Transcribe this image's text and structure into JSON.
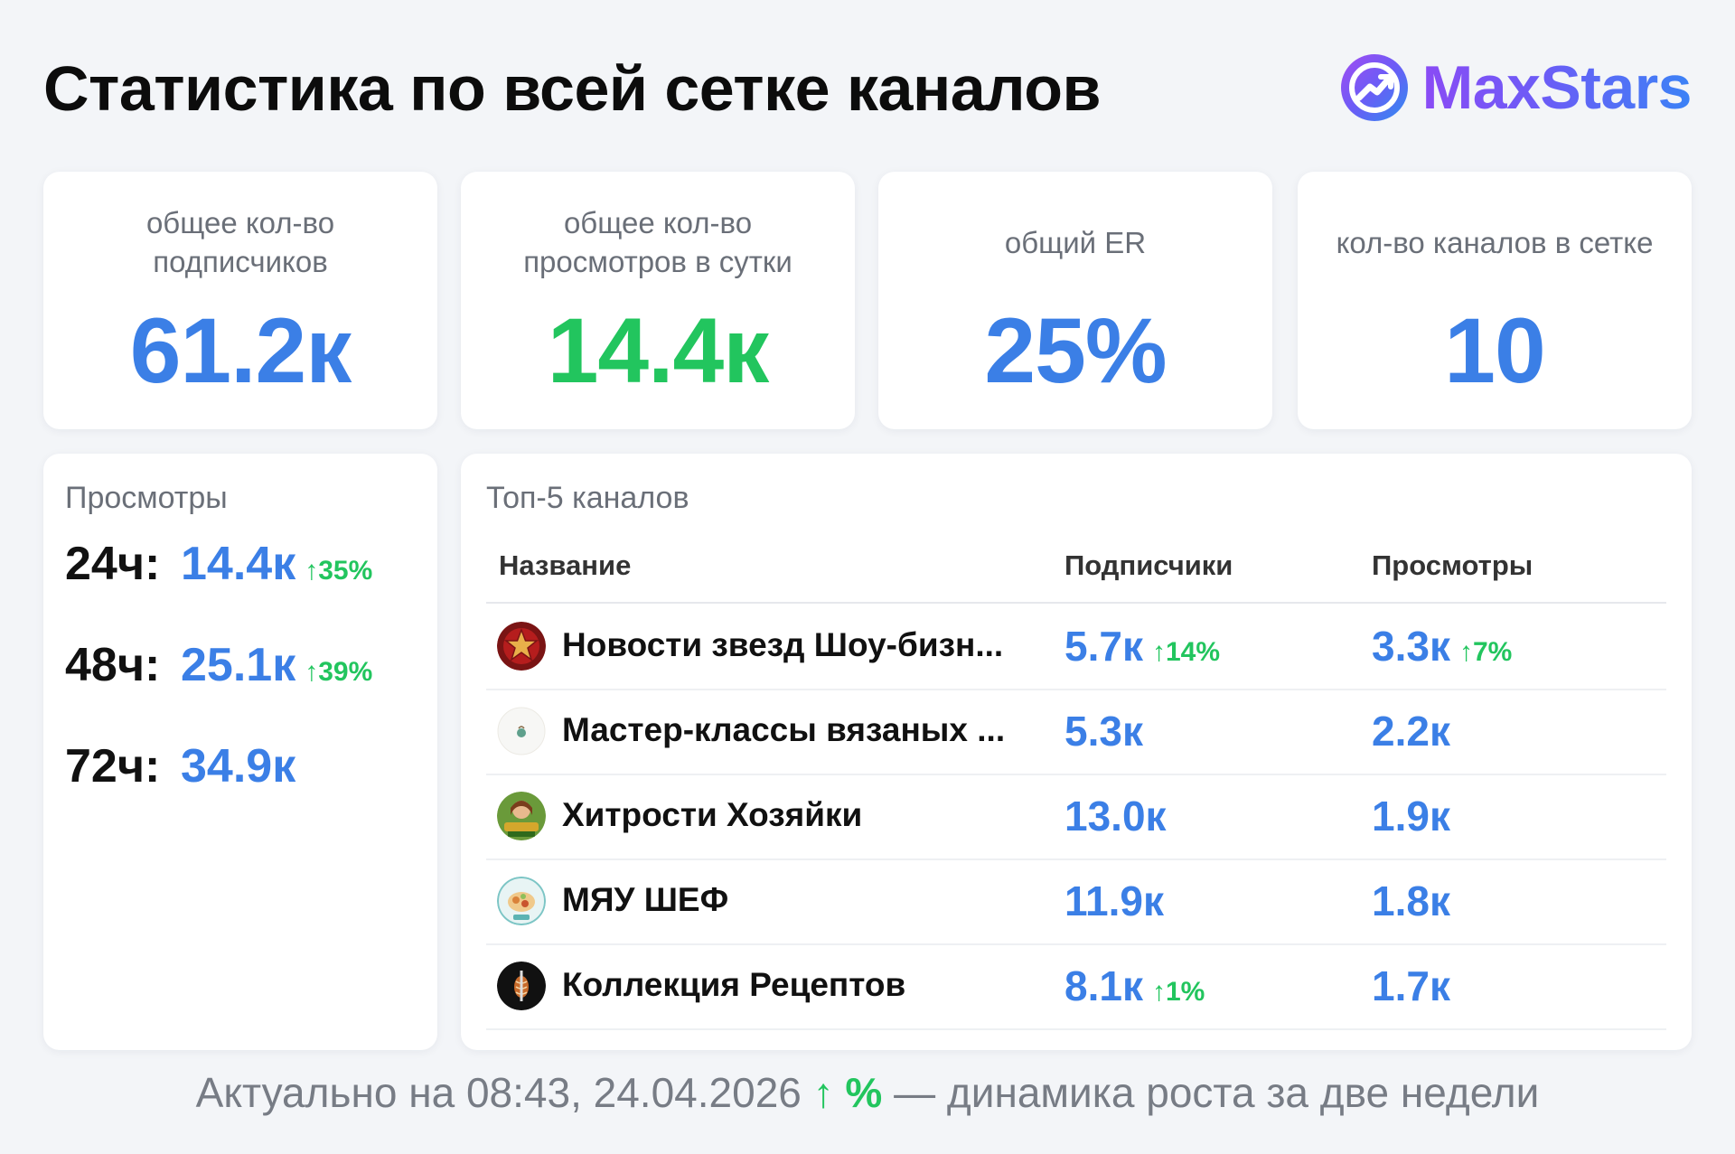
{
  "header": {
    "title": "Статистика по всей сетке каналов",
    "brand": "MaxStars",
    "brand_icon": "chart-arrow-icon"
  },
  "stats": [
    {
      "label": "общее кол-во подписчиков",
      "value": "61.2к",
      "color": "#3b7fe6"
    },
    {
      "label": "общее кол-во просмотров в сутки",
      "value": "14.4к",
      "color": "#22c55e"
    },
    {
      "label": "общий ER",
      "value": "25%",
      "color": "#3b7fe6"
    },
    {
      "label": "кол-во каналов в сетке",
      "value": "10",
      "color": "#3b7fe6"
    }
  ],
  "views": {
    "title": "Просмотры",
    "rows": [
      {
        "period": "24ч:",
        "value": "14.4к",
        "delta": "↑35%"
      },
      {
        "period": "48ч:",
        "value": "25.1к",
        "delta": "↑39%"
      },
      {
        "period": "72ч:",
        "value": "34.9к",
        "delta": ""
      }
    ]
  },
  "top": {
    "title": "Топ-5 каналов",
    "columns": {
      "name": "Название",
      "subs": "Подписчики",
      "views": "Просмотры"
    },
    "rows": [
      {
        "name": "Новости звезд Шоу-бизн...",
        "subs": "5.7к",
        "subs_delta": "↑14%",
        "views": "3.3к",
        "views_delta": "↑7%"
      },
      {
        "name": "Мастер-классы вязаных ...",
        "subs": "5.3к",
        "subs_delta": "",
        "views": "2.2к",
        "views_delta": ""
      },
      {
        "name": "Хитрости Хозяйки",
        "subs": "13.0к",
        "subs_delta": "",
        "views": "1.9к",
        "views_delta": ""
      },
      {
        "name": "МЯУ ШЕФ",
        "subs": "11.9к",
        "subs_delta": "",
        "views": "1.8к",
        "views_delta": ""
      },
      {
        "name": "Коллекция Рецептов",
        "subs": "8.1к",
        "subs_delta": "↑1%",
        "views": "1.7к",
        "views_delta": ""
      }
    ]
  },
  "footer": {
    "prefix": "Актуально на 08:43, 24.04.2026",
    "marker": "↑ %",
    "suffix": "— динамика роста за две недели"
  }
}
